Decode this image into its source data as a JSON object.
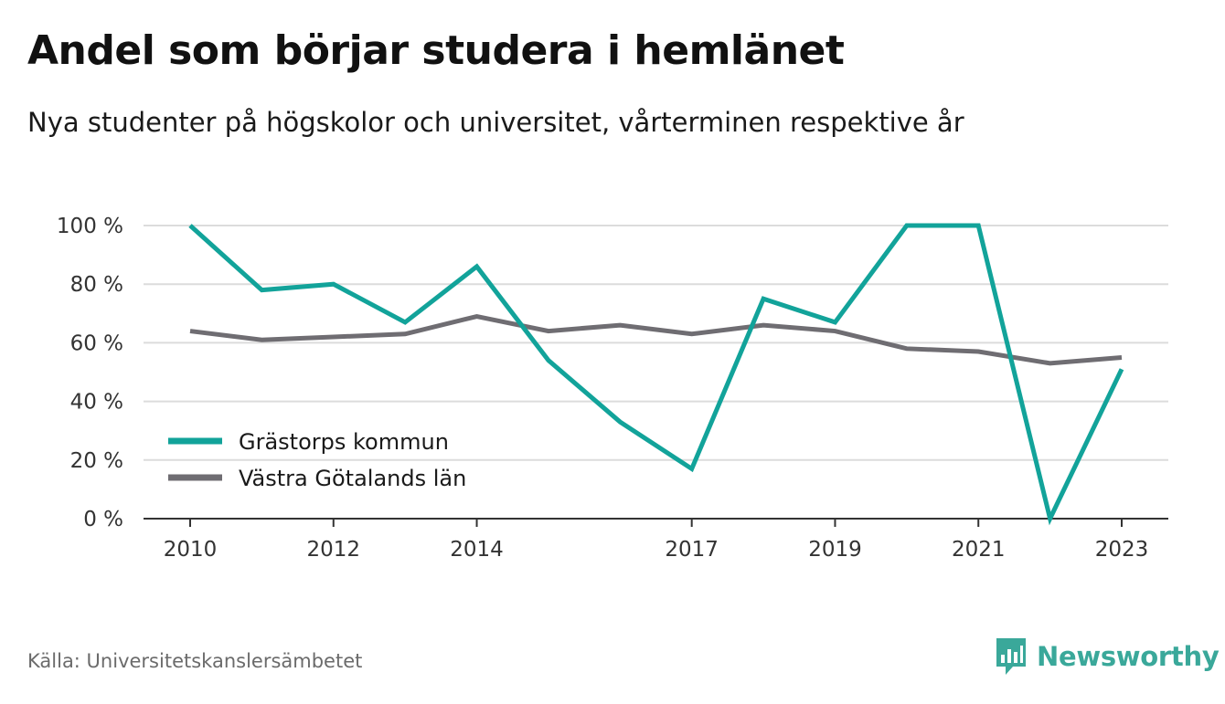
{
  "header": {
    "title": "Andel som börjar studera i hemlänet",
    "subtitle": "Nya studenter på högskolor och universitet, vårterminen respektive år"
  },
  "footer": {
    "source": "Källa: Universitetskanslersämbetet",
    "brand": "Newsworthy",
    "brand_icon": "bar-chart-speech-bubble-icon",
    "brand_color": "#3aa89a"
  },
  "chart_data": {
    "type": "line",
    "x": [
      2010,
      2011,
      2012,
      2013,
      2014,
      2015,
      2016,
      2017,
      2018,
      2019,
      2020,
      2021,
      2022,
      2023
    ],
    "x_tick_labels": [
      "2010",
      "2012",
      "2014",
      "2017",
      "2019",
      "2021",
      "2023"
    ],
    "y_ticks": [
      0,
      20,
      40,
      60,
      80,
      100
    ],
    "y_tick_labels": [
      "0 %",
      "20 %",
      "40 %",
      "60 %",
      "80 %",
      "100 %"
    ],
    "ylim": [
      0,
      100
    ],
    "grid": true,
    "legend_position": "bottom-left",
    "series": [
      {
        "name": "Grästorps kommun",
        "color": "#12a39a",
        "values": [
          100,
          78,
          80,
          67,
          86,
          54,
          33,
          17,
          75,
          67,
          100,
          100,
          0,
          51
        ]
      },
      {
        "name": "Västra Götalands län",
        "color": "#6f6d72",
        "values": [
          64,
          61,
          62,
          63,
          69,
          64,
          66,
          63,
          66,
          64,
          58,
          57,
          53,
          55
        ]
      }
    ]
  }
}
